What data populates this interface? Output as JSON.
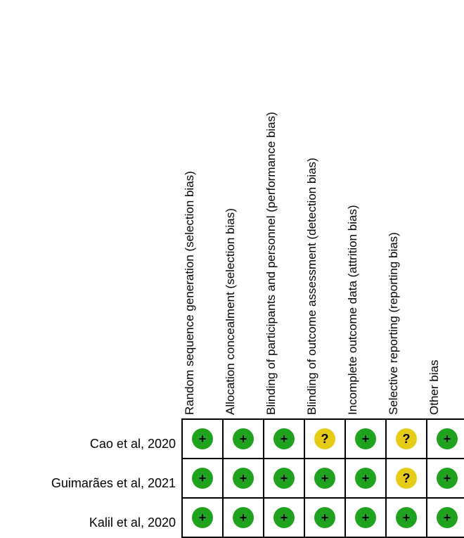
{
  "domains": [
    "Random sequence generation (selection bias)",
    "Allocation concealment (selection bias)",
    "Blinding of participants and personnel (performance bias)",
    "Blinding of outcome assessment (detection bias)",
    "Incomplete outcome data (attrition bias)",
    "Selective reporting (reporting bias)",
    "Other bias"
  ],
  "studies": [
    {
      "name": "Cao et al, 2020",
      "judgements": [
        "low",
        "low",
        "low",
        "unclear",
        "low",
        "unclear",
        "low"
      ]
    },
    {
      "name": "Guimarães et al, 2021",
      "judgements": [
        "low",
        "low",
        "low",
        "low",
        "low",
        "unclear",
        "low"
      ]
    },
    {
      "name": "Kalil et al, 2020",
      "judgements": [
        "low",
        "low",
        "low",
        "low",
        "low",
        "low",
        "low"
      ]
    }
  ],
  "symbols": {
    "low": "+",
    "unclear": "?",
    "high": "−"
  },
  "colors": {
    "low": "#1fa31f",
    "unclear": "#e6cc17",
    "high": "#e01f1f",
    "grid": "#000000"
  }
}
